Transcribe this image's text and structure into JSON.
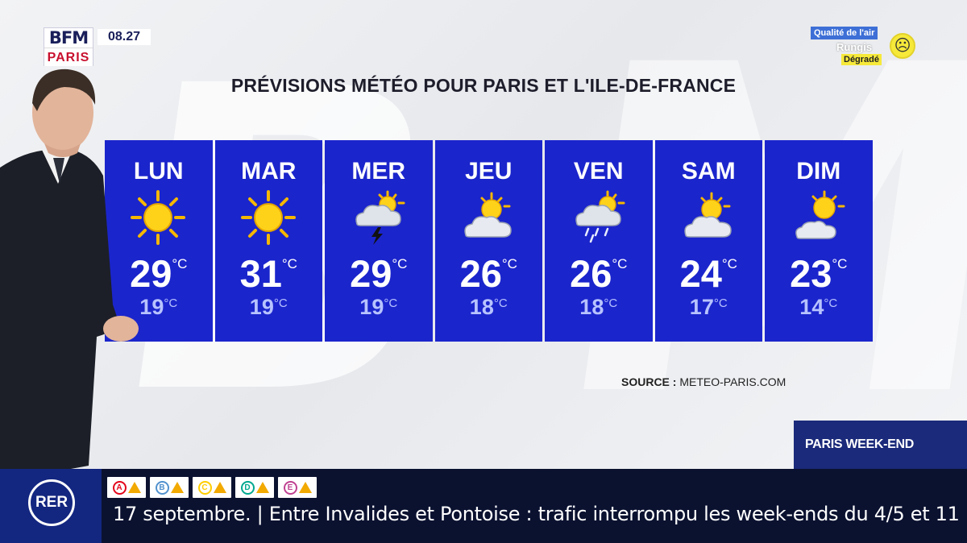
{
  "logo": {
    "top": "BFM",
    "bottom": "PARIS"
  },
  "clock": "08.27",
  "air_quality": {
    "label": "Qualité de l'air",
    "place": "Rungis",
    "status": "Dégradé",
    "face": "☹"
  },
  "title": "PRÉVISIONS MÉTÉO POUR PARIS ET L'ILE-DE-FRANCE",
  "forecast": [
    {
      "day": "LUN",
      "icon": "sun-icon",
      "max": "29",
      "min": "19"
    },
    {
      "day": "MAR",
      "icon": "sun-icon",
      "max": "31",
      "min": "19"
    },
    {
      "day": "MER",
      "icon": "storm-cloud-icon",
      "max": "29",
      "min": "19"
    },
    {
      "day": "JEU",
      "icon": "partly-cloudy-icon",
      "max": "26",
      "min": "18"
    },
    {
      "day": "VEN",
      "icon": "rain-cloud-icon",
      "max": "26",
      "min": "18"
    },
    {
      "day": "SAM",
      "icon": "partly-cloudy-icon",
      "max": "24",
      "min": "17"
    },
    {
      "day": "DIM",
      "icon": "partly-cloudy-icon",
      "max": "23",
      "min": "14"
    }
  ],
  "unit": "°C",
  "source": {
    "label": "SOURCE :",
    "value": "METEO-PARIS.COM"
  },
  "show_name": "PARIS WEEK-END",
  "ticker": {
    "rer_label": "RER",
    "lines": [
      {
        "letter": "A",
        "color": "#e3051b"
      },
      {
        "letter": "B",
        "color": "#5291ce"
      },
      {
        "letter": "C",
        "color": "#ffcd00"
      },
      {
        "letter": "D",
        "color": "#00a88f"
      },
      {
        "letter": "E",
        "color": "#c04191"
      }
    ],
    "text": "17 septembre. | Entre Invalides et Pontoise : trafic interrompu les week-ends du 4/5 et 11"
  },
  "colors": {
    "card": "#1b25cc",
    "ticker_bg": "#0b1230",
    "rer_bg": "#132680",
    "banner": "#1b2a7a"
  }
}
